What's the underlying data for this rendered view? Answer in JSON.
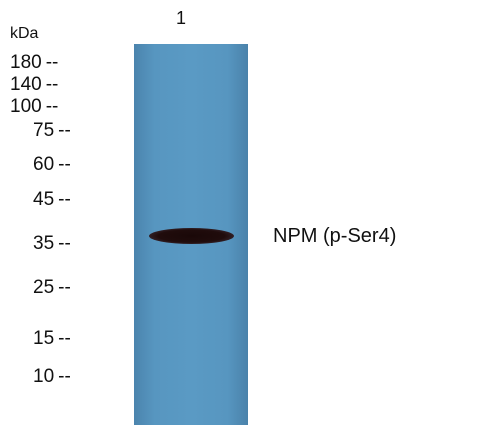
{
  "lane": {
    "number": "1"
  },
  "unit_label": "kDa",
  "markers": [
    {
      "label": "180",
      "dash": "--"
    },
    {
      "label": "140",
      "dash": "--"
    },
    {
      "label": "100",
      "dash": "--"
    },
    {
      "label": "75",
      "dash": "--"
    },
    {
      "label": "60",
      "dash": "--"
    },
    {
      "label": "45",
      "dash": "--"
    },
    {
      "label": "35",
      "dash": "--"
    },
    {
      "label": "25",
      "dash": "--"
    },
    {
      "label": "15",
      "dash": "--"
    },
    {
      "label": "10",
      "dash": "--"
    }
  ],
  "band": {
    "label": "NPM (p-Ser4)"
  },
  "colors": {
    "membrane": "#5796c0",
    "band": "#1a0808",
    "background": "#ffffff"
  }
}
